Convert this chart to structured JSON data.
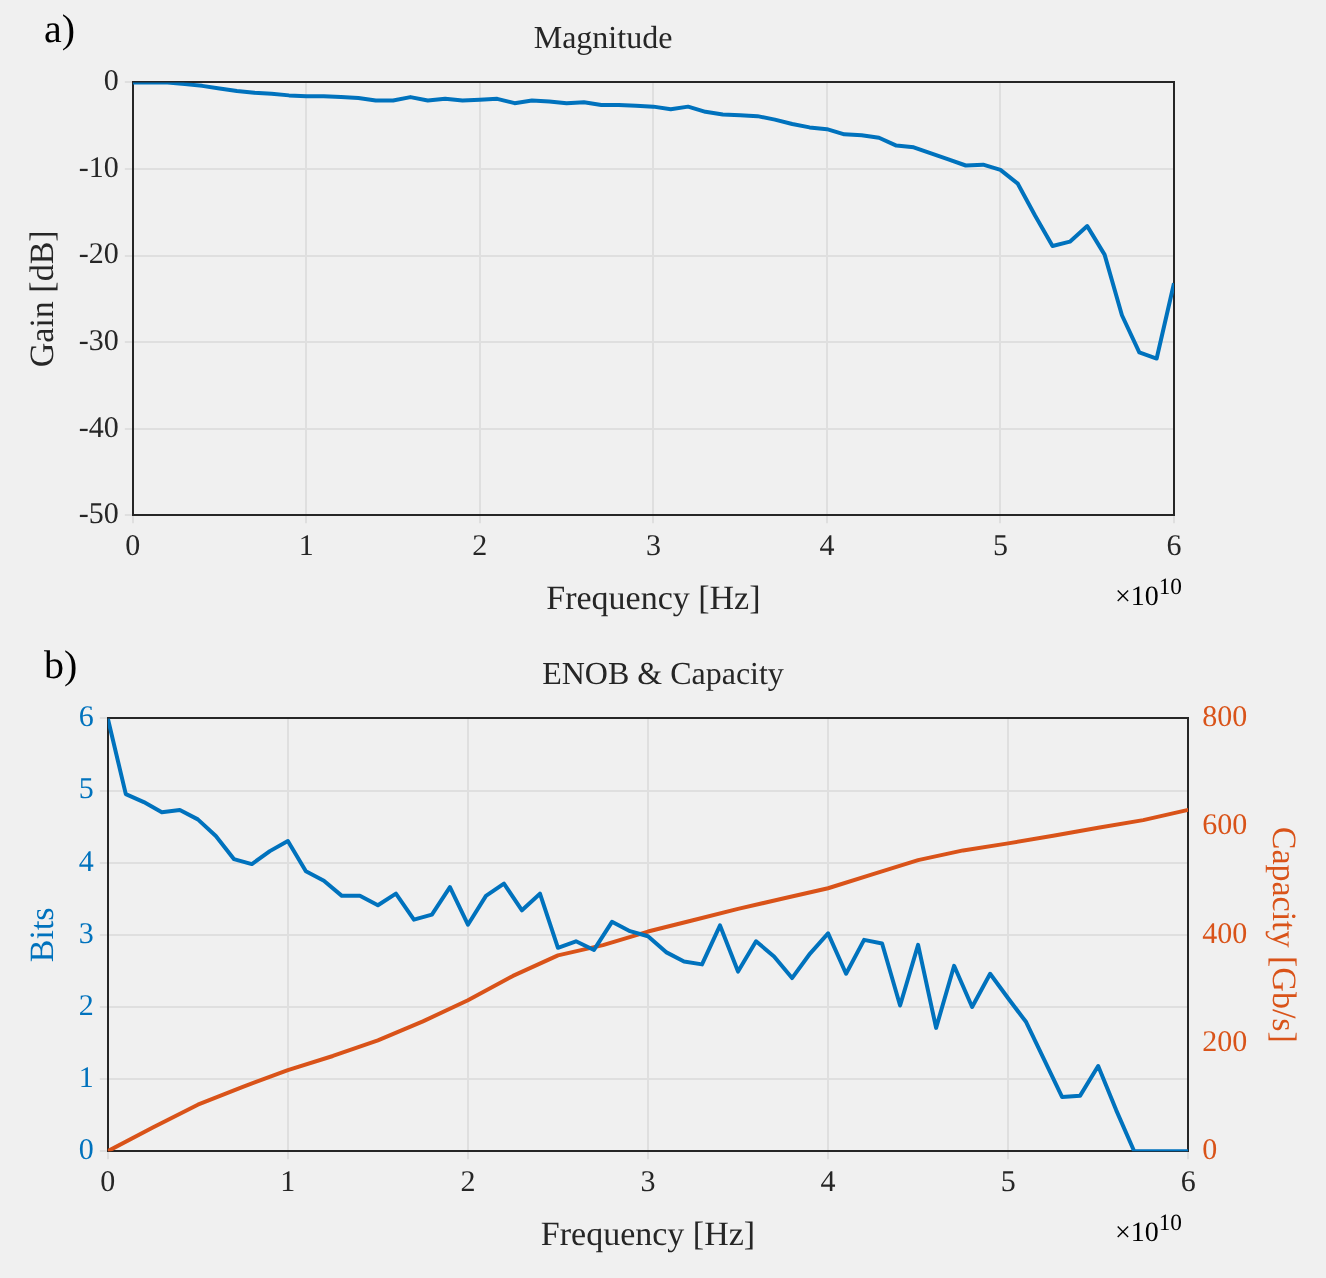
{
  "chart_data": [
    {
      "type": "line",
      "title": "Magnitude",
      "xlabel": "Frequency [Hz]",
      "ylabel": "Gain [dB]",
      "xlim": [
        0,
        6
      ],
      "xticks": [
        0,
        1,
        2,
        3,
        4,
        5,
        6
      ],
      "ylim": [
        -50,
        0
      ],
      "yticks": [
        -50,
        -40,
        -30,
        -20,
        -10,
        0
      ],
      "grid": true,
      "annotations": [
        "a)",
        "×10$^{10}$"
      ],
      "series": [
        {
          "color": "#0072bd",
          "x": [
            0,
            0.1,
            0.2,
            0.3,
            0.4,
            0.5,
            0.6,
            0.7,
            0.8,
            0.9,
            1,
            1.1,
            1.2,
            1.3,
            1.4,
            1.5,
            1.6,
            1.7,
            1.8,
            1.9,
            2,
            2.1,
            2.2,
            2.3,
            2.4,
            2.5,
            2.6,
            2.7,
            2.8,
            2.9,
            3,
            3.1,
            3.2,
            3.3,
            3.4,
            3.5,
            3.6,
            3.7,
            3.8,
            3.9,
            4,
            4.1,
            4.2,
            4.3,
            4.4,
            4.5,
            4.6,
            4.7,
            4.8,
            4.9,
            5,
            5.1,
            5.2,
            5.3,
            5.4,
            5.5,
            5.6,
            5.7,
            5.8,
            5.9,
            6
          ],
          "values": [
            0,
            0,
            0,
            -0.2,
            -0.4,
            -0.7,
            -1,
            -1.2,
            -1.3,
            -1.5,
            -1.6,
            -1.6,
            -1.7,
            -1.8,
            -2.1,
            -2.1,
            -1.7,
            -2.1,
            -1.9,
            -2.1,
            -2,
            -1.9,
            -2.4,
            -2.1,
            -2.2,
            -2.4,
            -2.3,
            -2.6,
            -2.6,
            -2.7,
            -2.8,
            -3.1,
            -2.8,
            -3.4,
            -3.7,
            -3.8,
            -3.9,
            -4.3,
            -4.8,
            -5.2,
            -5.4,
            -6,
            -6.1,
            -6.4,
            -7.3,
            -7.5,
            -8.2,
            -8.9,
            -9.6,
            -9.5,
            -10.1,
            -11.7,
            -15.4,
            -18.9,
            -18.4,
            -16.6,
            -19.9,
            -26.9,
            -31.2,
            -31.9,
            -23.2
          ]
        }
      ]
    },
    {
      "type": "line",
      "title": "ENOB & Capacity",
      "xlabel": "Frequency [Hz]",
      "ylabel": "Bits",
      "y2label": "Capacity [Gb/s]",
      "xlim": [
        0,
        6
      ],
      "xticks": [
        0,
        1,
        2,
        3,
        4,
        5,
        6
      ],
      "ylim": [
        0,
        6
      ],
      "yticks": [
        0,
        1,
        2,
        3,
        4,
        5,
        6
      ],
      "y2lim": [
        0,
        800
      ],
      "y2ticks": [
        0,
        200,
        400,
        600,
        800
      ],
      "grid": true,
      "annotations": [
        "b)",
        "×10$^{10}$"
      ],
      "series": [
        {
          "color": "#0072bd",
          "x": [
            0,
            0.1,
            0.2,
            0.3,
            0.4,
            0.5,
            0.6,
            0.7,
            0.8,
            0.9,
            1,
            1.1,
            1.2,
            1.3,
            1.4,
            1.5,
            1.6,
            1.7,
            1.8,
            1.9,
            2,
            2.1,
            2.2,
            2.3,
            2.4,
            2.5,
            2.6,
            2.7,
            2.8,
            2.9,
            3,
            3.1,
            3.2,
            3.3,
            3.4,
            3.5,
            3.6,
            3.7,
            3.8,
            3.9,
            4,
            4.1,
            4.2,
            4.3,
            4.4,
            4.5,
            4.6,
            4.7,
            4.8,
            4.9,
            5,
            5.1,
            5.2,
            5.3,
            5.4,
            5.5,
            5.6,
            5.7,
            5.8,
            5.9,
            6
          ],
          "values": [
            6,
            4.95,
            4.84,
            4.7,
            4.73,
            4.6,
            4.37,
            4.05,
            3.98,
            4.16,
            4.3,
            3.88,
            3.75,
            3.54,
            3.54,
            3.41,
            3.57,
            3.21,
            3.28,
            3.66,
            3.14,
            3.54,
            3.71,
            3.34,
            3.57,
            2.82,
            2.91,
            2.79,
            3.18,
            3.05,
            2.98,
            2.76,
            2.63,
            2.59,
            3.13,
            2.49,
            2.91,
            2.7,
            2.4,
            2.74,
            3.02,
            2.46,
            2.93,
            2.88,
            2.02,
            2.86,
            1.71,
            2.57,
            2,
            2.46,
            2.12,
            1.79,
            1.27,
            0.75,
            0.77,
            1.18,
            0.57,
            0,
            0,
            0,
            0
          ]
        },
        {
          "color": "#d95319",
          "axis": "y2",
          "x": [
            0,
            0.25,
            0.5,
            0.75,
            1,
            1.25,
            1.5,
            1.75,
            2,
            2.25,
            2.5,
            2.75,
            3,
            3.25,
            3.5,
            3.75,
            4,
            4.25,
            4.5,
            4.75,
            5,
            5.25,
            5.5,
            5.75,
            6
          ],
          "values": [
            0,
            44,
            86,
            119,
            150,
            176,
            205,
            240,
            279,
            324,
            362,
            381,
            406,
            427,
            448,
            467,
            486,
            512,
            538,
            556,
            569,
            583,
            598,
            612,
            631
          ]
        }
      ]
    }
  ]
}
